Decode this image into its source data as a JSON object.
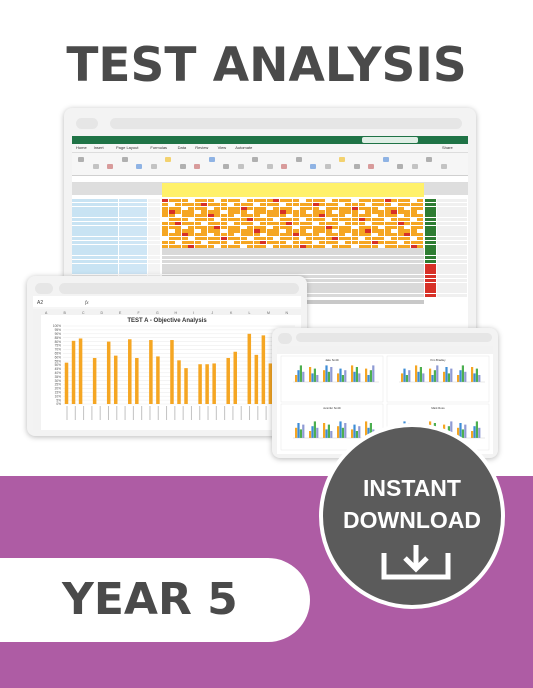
{
  "title": "TEST ANALYSIS",
  "year_label": "YEAR 5",
  "badge": {
    "line1": "INSTANT",
    "line2": "DOWNLOAD",
    "icon": "download-icon"
  },
  "colors": {
    "title_text": "#4a4a4a",
    "band": "#ae5ca4",
    "badge_bg": "#5b5b5b",
    "excel_green": "#1f7346",
    "heat_orange": "#f5a623",
    "heat_yellow": "#fff16a",
    "heat_red": "#d73027",
    "name_blue": "#c8e3f3",
    "bar_orange": "#f5a623"
  },
  "spreadsheet": {
    "tabs": [
      "Home",
      "Insert",
      "Page Layout",
      "Formulas",
      "Data",
      "Review",
      "View",
      "Automate"
    ],
    "share": "Share"
  },
  "chart_window": {
    "name_box": "A2",
    "fx": "fx",
    "columns": [
      "A",
      "B",
      "C",
      "D",
      "E",
      "F",
      "G",
      "H",
      "I",
      "J",
      "K",
      "L",
      "M",
      "N"
    ]
  },
  "chart_data": {
    "type": "bar",
    "title": "TEST A - Objective Analysis",
    "ylim": [
      0,
      100
    ],
    "yticks": [
      "0%",
      "5%",
      "10%",
      "15%",
      "20%",
      "25%",
      "30%",
      "35%",
      "40%",
      "45%",
      "50%",
      "55%",
      "60%",
      "65%",
      "70%",
      "75%",
      "80%",
      "85%",
      "90%",
      "95%",
      "100%"
    ],
    "values": [
      53,
      81,
      84,
      0,
      59,
      0,
      80,
      62,
      0,
      83,
      59,
      0,
      82,
      61,
      0,
      82,
      56,
      46,
      0,
      51,
      51,
      52,
      0,
      59,
      67,
      0,
      90,
      63,
      88,
      52,
      0,
      54,
      70
    ]
  },
  "mini_charts": {
    "panel_titles": [
      "Jake Smith",
      "Kim Bradley",
      "Jennifer Smith",
      "Mark Ross"
    ],
    "series_colors": [
      "#f5a623",
      "#3e8dd6",
      "#4caf50",
      "#8e9bd4"
    ]
  }
}
